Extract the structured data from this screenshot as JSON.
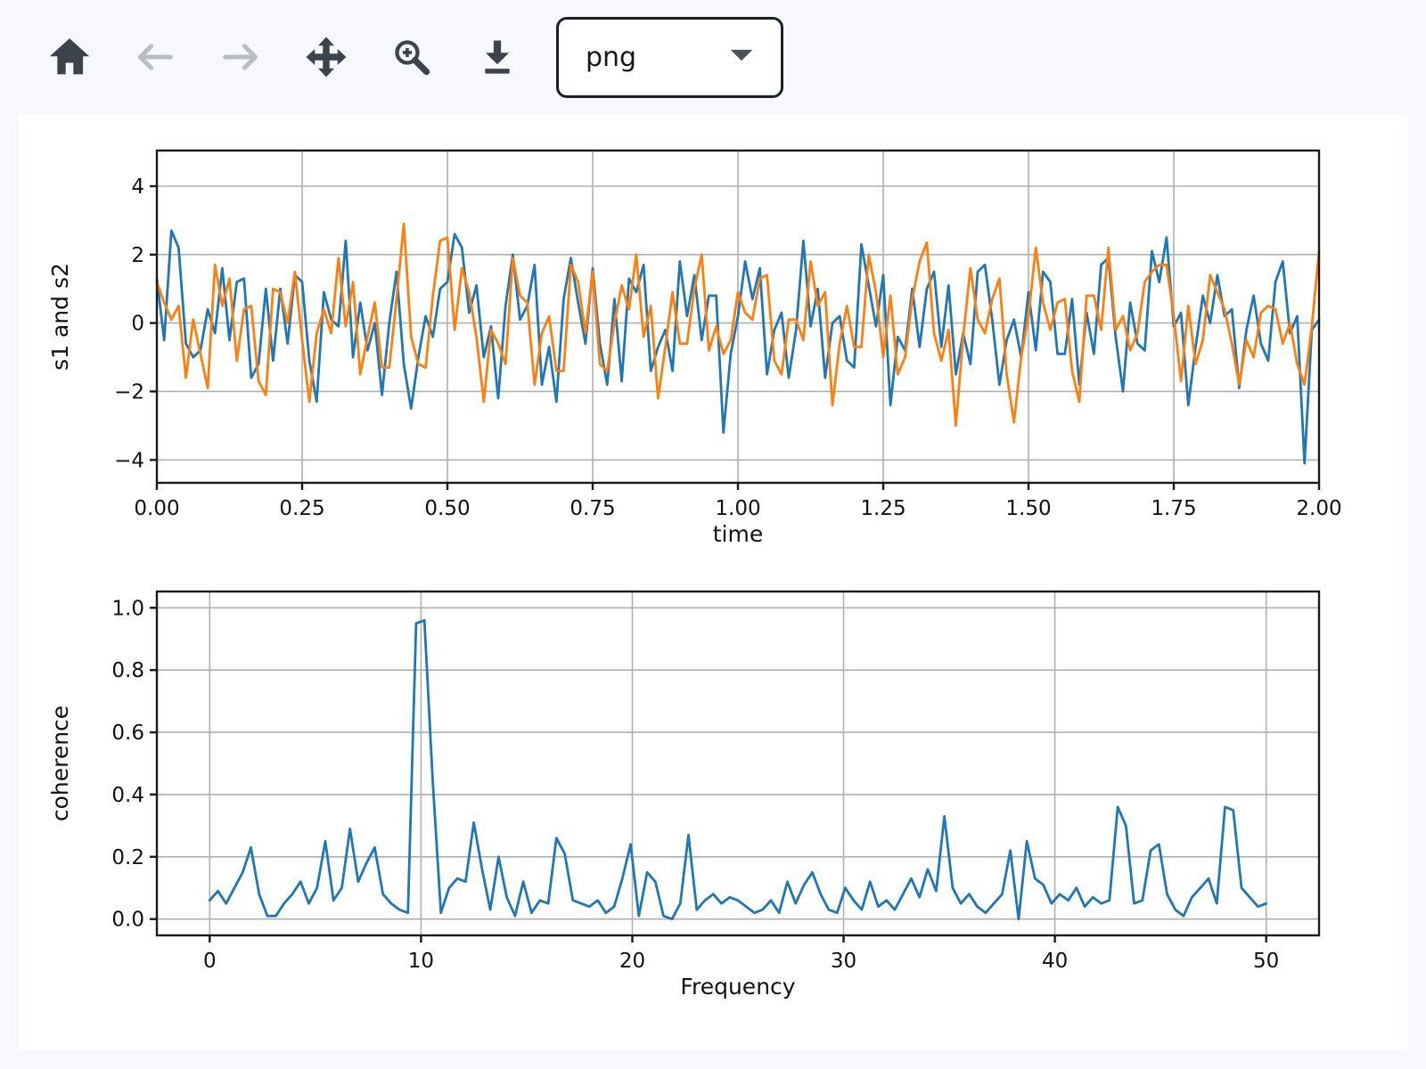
{
  "toolbar": {
    "buttons": [
      {
        "name": "home",
        "icon": "home-icon",
        "enabled": true
      },
      {
        "name": "back",
        "icon": "arrow-left-icon",
        "enabled": false
      },
      {
        "name": "forward",
        "icon": "arrow-right-icon",
        "enabled": false
      },
      {
        "name": "pan",
        "icon": "move-icon",
        "enabled": true
      },
      {
        "name": "zoom",
        "icon": "zoom-in-icon",
        "enabled": true
      },
      {
        "name": "download",
        "icon": "download-icon",
        "enabled": true
      }
    ],
    "format_select": {
      "value": "png",
      "caret_icon": "caret-down-icon"
    }
  },
  "colors": {
    "page_bg": "#f6f8fc",
    "figure_bg": "#ffffff",
    "icon": "#3d434c",
    "icon_disabled": "#b9bdc4",
    "grid": "#b0b0b0",
    "spine": "#1a1a1a",
    "text": "#111111",
    "series1": "#1f77b4",
    "series2": "#ff7f0e"
  },
  "chart_data": [
    {
      "type": "line",
      "xlabel": "time",
      "ylabel": "s1 and s2",
      "grid": true,
      "legend": null,
      "xlim": [
        0,
        2
      ],
      "ylim": [
        -4.67,
        5.04
      ],
      "xticks": [
        0,
        0.25,
        0.5,
        0.75,
        1.0,
        1.25,
        1.5,
        1.75,
        2.0
      ],
      "xtick_labels": [
        "0.00",
        "0.25",
        "0.50",
        "0.75",
        "1.00",
        "1.25",
        "1.50",
        "1.75",
        "2.00"
      ],
      "yticks": [
        -4,
        -2,
        0,
        2,
        4
      ],
      "ytick_labels": [
        "−4",
        "−2",
        "0",
        "2",
        "4"
      ],
      "x": [
        0,
        0.0125,
        0.025,
        0.0375,
        0.05,
        0.0625,
        0.075,
        0.0875,
        0.1,
        0.1125,
        0.125,
        0.1375,
        0.15,
        0.1625,
        0.175,
        0.1875,
        0.2,
        0.2125,
        0.225,
        0.2375,
        0.25,
        0.2625,
        0.275,
        0.2875,
        0.3,
        0.3125,
        0.325,
        0.3375,
        0.35,
        0.3625,
        0.375,
        0.3875,
        0.4,
        0.4125,
        0.425,
        0.4375,
        0.45,
        0.4625,
        0.475,
        0.4875,
        0.5,
        0.5125,
        0.525,
        0.5375,
        0.55,
        0.5625,
        0.575,
        0.5875,
        0.6,
        0.6125,
        0.625,
        0.6375,
        0.65,
        0.6625,
        0.675,
        0.6875,
        0.7,
        0.7125,
        0.725,
        0.7375,
        0.75,
        0.7625,
        0.775,
        0.7875,
        0.8,
        0.8125,
        0.825,
        0.8375,
        0.85,
        0.8625,
        0.875,
        0.8875,
        0.9,
        0.9125,
        0.925,
        0.9375,
        0.95,
        0.9625,
        0.975,
        0.9875,
        1.0,
        1.0125,
        1.025,
        1.0375,
        1.05,
        1.0625,
        1.075,
        1.0875,
        1.1,
        1.1125,
        1.125,
        1.1375,
        1.15,
        1.1625,
        1.175,
        1.1875,
        1.2,
        1.2125,
        1.225,
        1.2375,
        1.25,
        1.2625,
        1.275,
        1.2875,
        1.3,
        1.3125,
        1.325,
        1.3375,
        1.35,
        1.3625,
        1.375,
        1.3875,
        1.4,
        1.4125,
        1.425,
        1.4375,
        1.45,
        1.4625,
        1.475,
        1.4875,
        1.5,
        1.5125,
        1.525,
        1.5375,
        1.55,
        1.5625,
        1.575,
        1.5875,
        1.6,
        1.6125,
        1.625,
        1.6375,
        1.65,
        1.6625,
        1.675,
        1.6875,
        1.7,
        1.7125,
        1.725,
        1.7375,
        1.75,
        1.7625,
        1.775,
        1.7875,
        1.8,
        1.8125,
        1.825,
        1.8375,
        1.85,
        1.8625,
        1.875,
        1.8875,
        1.9,
        1.9125,
        1.925,
        1.9375,
        1.95,
        1.9625,
        1.975,
        1.9875,
        2.0
      ],
      "series": [
        {
          "name": "s1",
          "color": "#1f77b4",
          "y": [
            1.3,
            -0.5,
            2.7,
            2.2,
            -0.6,
            -1.0,
            -0.8,
            0.4,
            -0.3,
            1.6,
            -0.5,
            1.2,
            1.3,
            -1.6,
            -1.2,
            1.0,
            -1.1,
            1.0,
            -0.6,
            1.4,
            1.2,
            -1.1,
            -2.3,
            0.9,
            0.1,
            -0.1,
            2.4,
            -1.0,
            0.6,
            -0.8,
            0.0,
            -2.1,
            0.0,
            1.5,
            -1.2,
            -2.5,
            -1.0,
            0.2,
            -0.4,
            1.0,
            1.2,
            2.6,
            2.2,
            0.3,
            1.1,
            -1.0,
            -0.1,
            -2.2,
            0.5,
            2.0,
            0.1,
            0.5,
            1.7,
            -1.8,
            -0.7,
            -2.3,
            0.7,
            1.9,
            0.6,
            -0.6,
            1.6,
            -0.6,
            -1.8,
            0.7,
            -1.7,
            1.3,
            0.9,
            1.7,
            -1.4,
            -0.7,
            -0.2,
            -1.4,
            1.8,
            0.2,
            1.4,
            -0.5,
            0.8,
            0.8,
            -3.2,
            -0.9,
            0.2,
            1.8,
            0.7,
            1.6,
            -1.5,
            -0.2,
            0.3,
            -1.6,
            -0.2,
            2.4,
            -0.1,
            1.0,
            -1.6,
            0.0,
            0.2,
            -1.1,
            -1.3,
            2.3,
            1.1,
            -0.1,
            1.4,
            -2.4,
            -0.4,
            -0.8,
            1.0,
            -0.7,
            1.0,
            1.5,
            -0.7,
            1.1,
            -1.5,
            -0.3,
            -1.2,
            1.5,
            1.7,
            0.1,
            -1.8,
            -0.5,
            0.1,
            -1.0,
            0.9,
            -0.8,
            1.5,
            1.2,
            -0.9,
            -0.9,
            0.7,
            -1.8,
            0.3,
            -0.9,
            1.7,
            1.9,
            -0.4,
            -2.0,
            0.6,
            -0.6,
            -0.8,
            2.1,
            1.2,
            2.5,
            -0.1,
            0.3,
            -2.4,
            -0.7,
            0.8,
            0.0,
            1.4,
            0.2,
            0.4,
            -1.9,
            -0.2,
            0.8,
            -0.6,
            -1.1,
            1.2,
            1.8,
            -0.3,
            0.2,
            -4.1,
            -0.2,
            0.1
          ]
        },
        {
          "name": "s2",
          "color": "#ff7f0e",
          "y": [
            1.2,
            0.6,
            0.1,
            0.5,
            -1.6,
            0.1,
            -0.9,
            -1.9,
            1.7,
            0.5,
            1.3,
            -1.1,
            0.4,
            0.5,
            -1.7,
            -2.1,
            1.0,
            0.9,
            0.0,
            1.5,
            -0.5,
            -2.3,
            -0.3,
            0.4,
            -0.3,
            1.9,
            -0.1,
            1.2,
            -1.5,
            -0.4,
            0.6,
            -1.3,
            -1.3,
            0.7,
            2.9,
            -0.4,
            -1.2,
            -1.3,
            0.8,
            2.4,
            2.5,
            -0.2,
            1.6,
            0.9,
            -0.4,
            -2.3,
            -0.2,
            -0.6,
            -1.2,
            1.9,
            0.8,
            0.6,
            -1.8,
            -0.3,
            0.2,
            -1.4,
            -1.4,
            1.7,
            1.2,
            -0.3,
            1.5,
            -1.2,
            -1.4,
            0.0,
            1.1,
            0.4,
            2.0,
            -0.4,
            0.5,
            -2.2,
            -0.7,
            0.9,
            -0.6,
            -0.6,
            1.0,
            2.0,
            -0.8,
            -0.1,
            -0.9,
            -0.5,
            0.9,
            0.3,
            0.1,
            1.3,
            1.4,
            -1.1,
            -1.5,
            0.1,
            0.1,
            -0.5,
            1.8,
            0.5,
            0.9,
            -2.4,
            -0.6,
            0.5,
            -0.7,
            -0.7,
            2.0,
            0.9,
            -1.0,
            0.8,
            -1.5,
            -1.0,
            0.7,
            1.8,
            2.35,
            -0.3,
            -1.1,
            -0.2,
            -3.0,
            -0.4,
            1.6,
            0.1,
            -0.3,
            0.7,
            1.3,
            -1.5,
            -2.9,
            -1.0,
            0.2,
            2.2,
            0.6,
            -0.2,
            0.6,
            0.7,
            -1.4,
            -2.3,
            0.8,
            0.8,
            -0.2,
            2.2,
            -0.2,
            0.2,
            -0.8,
            -0.3,
            1.2,
            1.5,
            1.7,
            1.7,
            0.2,
            -1.7,
            0.5,
            -1.2,
            -0.5,
            1.4,
            0.9,
            0.4,
            -0.6,
            -1.8,
            -0.5,
            -1.0,
            0.3,
            0.5,
            0.4,
            -0.6,
            0.0,
            -1.2,
            -1.8,
            -0.1,
            2.1
          ]
        }
      ]
    },
    {
      "type": "line",
      "xlabel": "Frequency",
      "ylabel": "coherence",
      "grid": true,
      "legend": null,
      "xlim": [
        -2.5,
        52.5
      ],
      "ylim": [
        -0.0525,
        1.0525
      ],
      "xticks": [
        0,
        10,
        20,
        30,
        40,
        50
      ],
      "xtick_labels": [
        "0",
        "10",
        "20",
        "30",
        "40",
        "50"
      ],
      "yticks": [
        0,
        0.2,
        0.4,
        0.6,
        0.8,
        1.0
      ],
      "ytick_labels": [
        "0.0",
        "0.2",
        "0.4",
        "0.6",
        "0.8",
        "1.0"
      ],
      "x": [
        0,
        0.39,
        0.78,
        1.17,
        1.56,
        1.95,
        2.34,
        2.73,
        3.13,
        3.52,
        3.91,
        4.3,
        4.69,
        5.08,
        5.47,
        5.86,
        6.25,
        6.64,
        7.03,
        7.42,
        7.81,
        8.2,
        8.59,
        8.98,
        9.38,
        9.77,
        10.16,
        10.55,
        10.94,
        11.33,
        11.72,
        12.11,
        12.5,
        12.89,
        13.28,
        13.67,
        14.06,
        14.45,
        14.84,
        15.23,
        15.63,
        16.02,
        16.41,
        16.8,
        17.19,
        17.58,
        17.97,
        18.36,
        18.75,
        19.14,
        19.53,
        19.92,
        20.31,
        20.7,
        21.09,
        21.48,
        21.88,
        22.27,
        22.66,
        23.05,
        23.44,
        23.83,
        24.22,
        24.61,
        25.0,
        25.39,
        25.78,
        26.17,
        26.56,
        26.95,
        27.34,
        27.73,
        28.13,
        28.52,
        28.91,
        29.3,
        29.69,
        30.08,
        30.47,
        30.86,
        31.25,
        31.64,
        32.03,
        32.42,
        32.81,
        33.2,
        33.59,
        33.98,
        34.38,
        34.77,
        35.16,
        35.55,
        35.94,
        36.33,
        36.72,
        37.11,
        37.5,
        37.89,
        38.28,
        38.67,
        39.06,
        39.45,
        39.84,
        40.23,
        40.63,
        41.02,
        41.41,
        41.8,
        42.19,
        42.58,
        42.97,
        43.36,
        43.75,
        44.14,
        44.53,
        44.92,
        45.31,
        45.7,
        46.09,
        46.48,
        46.88,
        47.27,
        47.66,
        48.05,
        48.44,
        48.83,
        49.22,
        49.61,
        50.0
      ],
      "series": [
        {
          "name": "coherence",
          "color": "#1f77b4",
          "y": [
            0.06,
            0.09,
            0.05,
            0.1,
            0.15,
            0.23,
            0.08,
            0.01,
            0.01,
            0.05,
            0.08,
            0.12,
            0.05,
            0.1,
            0.25,
            0.06,
            0.1,
            0.29,
            0.12,
            0.18,
            0.23,
            0.08,
            0.05,
            0.03,
            0.02,
            0.95,
            0.96,
            0.45,
            0.02,
            0.1,
            0.13,
            0.12,
            0.31,
            0.16,
            0.03,
            0.2,
            0.07,
            0.01,
            0.12,
            0.02,
            0.06,
            0.05,
            0.26,
            0.21,
            0.06,
            0.05,
            0.04,
            0.06,
            0.02,
            0.04,
            0.13,
            0.24,
            0.01,
            0.15,
            0.12,
            0.01,
            0.0,
            0.05,
            0.27,
            0.03,
            0.06,
            0.08,
            0.05,
            0.07,
            0.06,
            0.04,
            0.02,
            0.03,
            0.06,
            0.02,
            0.12,
            0.05,
            0.11,
            0.15,
            0.08,
            0.03,
            0.02,
            0.1,
            0.06,
            0.03,
            0.12,
            0.04,
            0.06,
            0.03,
            0.08,
            0.13,
            0.07,
            0.16,
            0.09,
            0.33,
            0.1,
            0.05,
            0.08,
            0.04,
            0.02,
            0.05,
            0.08,
            0.22,
            0.0,
            0.25,
            0.13,
            0.11,
            0.05,
            0.08,
            0.06,
            0.1,
            0.04,
            0.07,
            0.05,
            0.06,
            0.36,
            0.3,
            0.05,
            0.06,
            0.22,
            0.24,
            0.08,
            0.03,
            0.01,
            0.07,
            0.1,
            0.13,
            0.05,
            0.36,
            0.35,
            0.1,
            0.07,
            0.04,
            0.05
          ]
        }
      ]
    }
  ]
}
